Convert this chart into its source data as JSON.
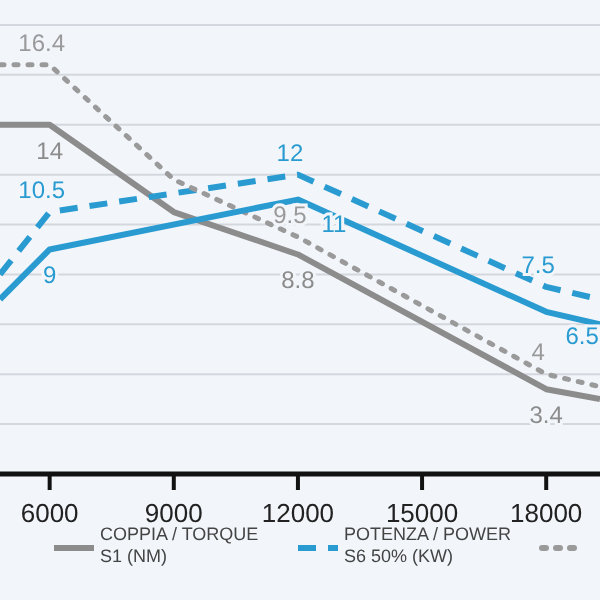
{
  "chart_data": {
    "type": "line",
    "xlim": [
      4800,
      19300
    ],
    "xticks": [
      6000,
      9000,
      12000,
      15000,
      18000
    ],
    "ylim": [
      0,
      19
    ],
    "yticks": [
      {
        "value": 2,
        "label": null
      },
      {
        "value": 4,
        "label": null
      },
      {
        "value": 6,
        "label": null
      },
      {
        "value": 8,
        "label": null
      },
      {
        "value": 10,
        "label": null
      },
      {
        "value": 12,
        "label": null
      },
      {
        "value": 14,
        "label": null
      },
      {
        "value": 16,
        "label": null
      },
      {
        "value": 18,
        "label": null
      }
    ],
    "tick_labels": "x",
    "grid": "y",
    "legend": "bottom",
    "marker": "none",
    "series": [
      {
        "name": "COPPIA / TORQUE\nS1 (NM)",
        "color": "#8c8c8c",
        "line_style": "solid",
        "x": [
          4800,
          6000,
          9000,
          12000,
          18000,
          19300
        ],
        "values": [
          14,
          14,
          10.5,
          8.8,
          3.4,
          3
        ],
        "value_labels": [
          null,
          "14",
          null,
          "8.8",
          "3.4",
          null
        ]
      },
      {
        "name": "POTENZA / POWER\nS6 50% (KW)",
        "color": "#2a9bd0",
        "line_style": "dashed",
        "x": [
          4800,
          6000,
          12000,
          18000,
          19300
        ],
        "values": [
          8,
          10.5,
          12,
          7.5,
          7
        ],
        "value_labels": [
          null,
          "10.5",
          "12",
          "7.5",
          null
        ]
      },
      {
        "color": "#9a9a9a",
        "line_style": "dotted",
        "x": [
          4800,
          6000,
          9000,
          12000,
          18000,
          19300
        ],
        "values": [
          16.4,
          16.4,
          11.8,
          9.5,
          4,
          3.5
        ],
        "value_labels": [
          null,
          "16.4",
          null,
          "9.5",
          "4",
          null
        ]
      },
      {
        "color": "#2a9bd0",
        "line_style": "solid",
        "x": [
          4800,
          6000,
          12000,
          18000,
          19300
        ],
        "values": [
          7,
          9,
          11,
          6.5,
          6
        ],
        "value_labels": [
          null,
          "9",
          "11",
          "6.5",
          null
        ]
      }
    ]
  }
}
